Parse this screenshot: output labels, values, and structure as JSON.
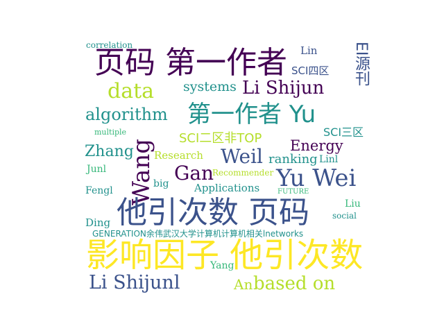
{
  "palette": {
    "purple": "#440154",
    "indigo": "#3b528b",
    "teal": "#21918c",
    "green": "#35b779",
    "lime": "#b5de2b",
    "yellow": "#fde725"
  },
  "words": {
    "correlation": "correlation",
    "yema_diyizuozhe": "页码 第一作者",
    "lin": "Lin",
    "sci_sixth": "SCI四区",
    "ei_journal": "EI源刊",
    "data": "data",
    "systems": "systems",
    "li_shijun": "Li Shijun",
    "algorithm": "algorithm",
    "diyizuozhe_yu": "第一作者 Yu",
    "multiple": "multiple",
    "sci_third": "SCI三区",
    "sci_second_nontop": "SCI二区非TOP",
    "energy": "Energy",
    "zhang": "Zhang",
    "wang": "Wang",
    "weil": "Weil",
    "research": "Research",
    "ranking": "ranking",
    "linl": "Linl",
    "junl": "Junl",
    "gan": "Gan",
    "recommender": "Recommender",
    "yu_wei": "Yu Wei",
    "fengl": "Fengl",
    "big": "big",
    "applications": "Applications",
    "future": "FUTURE",
    "liu": "Liu",
    "taying_yema": "他引次数 页码",
    "social": "social",
    "ding": "Ding",
    "generation_line": "GENERATION余伟武汉大学计算机计算机相关lnetworks",
    "impact_taying": "影响因子 他引次数",
    "yang": "Yang",
    "li_shijunl": "Li Shijunl",
    "an": "An",
    "based_on": "based on"
  }
}
